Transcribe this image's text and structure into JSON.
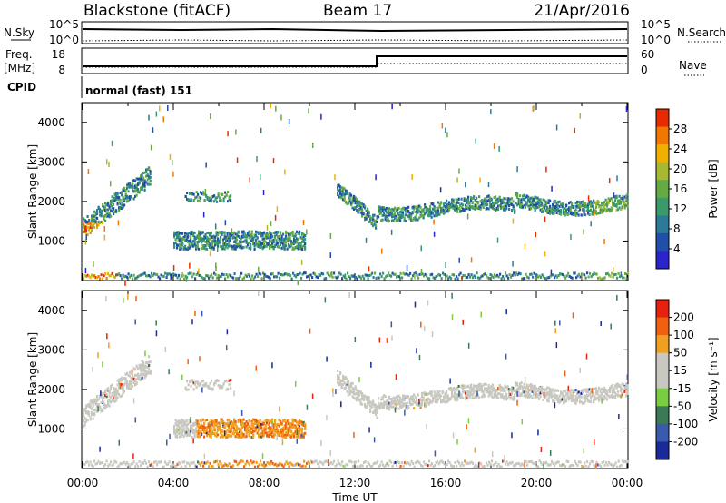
{
  "header": {
    "station": "Blackstone (fitACF)",
    "beam": "Beam 17",
    "date": "21/Apr/2016",
    "mode": "normal (fast) 151"
  },
  "top_panel": {
    "nsky_label": "N.Sky",
    "nsearch_label": "N.Search",
    "tick_hi": "10^5",
    "tick_lo": "10^0",
    "freq_label": "Freq.",
    "freq_unit": "[MHz]",
    "freq_ticks": [
      "18",
      "8"
    ],
    "nave_label": "Nave",
    "nave_ticks": [
      "60",
      "0"
    ],
    "cpid_label": "CPID"
  },
  "colors": {
    "power": [
      "#2a24cc",
      "#1f4fa8",
      "#2c7a9a",
      "#3a9a6a",
      "#66aa44",
      "#a8b830",
      "#f0b000",
      "#f07800",
      "#e82a00"
    ],
    "velocity": [
      "#1a2a9a",
      "#3a5ab0",
      "#3a7a55",
      "#7acc40",
      "#c8c8c0",
      "#c8c8c0",
      "#f0a020",
      "#f06010",
      "#e82010"
    ]
  },
  "chart_data": [
    {
      "type": "heatmap",
      "title": "Power",
      "xlabel": "Time UT",
      "ylabel": "Slant Range [km]",
      "x_ticks": [
        "00:00",
        "04:00",
        "08:00",
        "12:00",
        "16:00",
        "20:00",
        "00:00"
      ],
      "xlim": [
        0,
        24
      ],
      "ylim": [
        0,
        4500
      ],
      "y_ticks": [
        1000,
        2000,
        3000,
        4000
      ],
      "colorbar": {
        "label": "Power [dB]",
        "ticks": [
          "4",
          "8",
          "12",
          "16",
          "20",
          "24",
          "28"
        ]
      }
    },
    {
      "type": "heatmap",
      "title": "Velocity",
      "xlabel": "Time UT",
      "ylabel": "Slant Range [km]",
      "x_ticks": [
        "00:00",
        "04:00",
        "08:00",
        "12:00",
        "16:00",
        "20:00",
        "00:00"
      ],
      "xlim": [
        0,
        24
      ],
      "ylim": [
        0,
        4500
      ],
      "y_ticks": [
        1000,
        2000,
        3000,
        4000
      ],
      "colorbar": {
        "label": "Velocity [m s⁻¹]",
        "ticks": [
          "200",
          "100",
          "50",
          "15",
          "-15",
          "-50",
          "-100",
          "-200"
        ]
      }
    }
  ]
}
